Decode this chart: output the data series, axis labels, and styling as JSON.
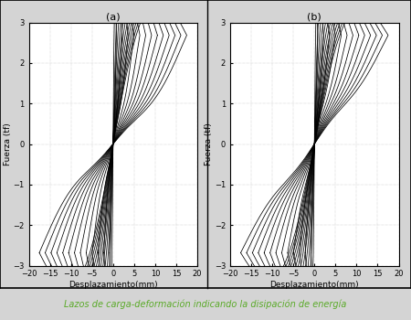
{
  "title_a": "(a)",
  "title_b": "(b)",
  "xlabel": "Desplazamiento(mm)",
  "ylabel": "Fuerza (tf)",
  "xlim": [
    -20,
    20
  ],
  "ylim": [
    -3,
    3
  ],
  "xticks": [
    -20,
    -15,
    -10,
    -5,
    0,
    5,
    10,
    15,
    20
  ],
  "yticks": [
    -3,
    -2,
    -1,
    0,
    1,
    2,
    3
  ],
  "caption": "Lazos de carga-deformación indicando la disipación de energía",
  "caption_color": "#5aaa28",
  "background_color": "#ffffff",
  "line_color": "#000000",
  "num_cycles": 13,
  "fig_background": "#d4d4d4",
  "panel_bg": "#f0f0f0"
}
